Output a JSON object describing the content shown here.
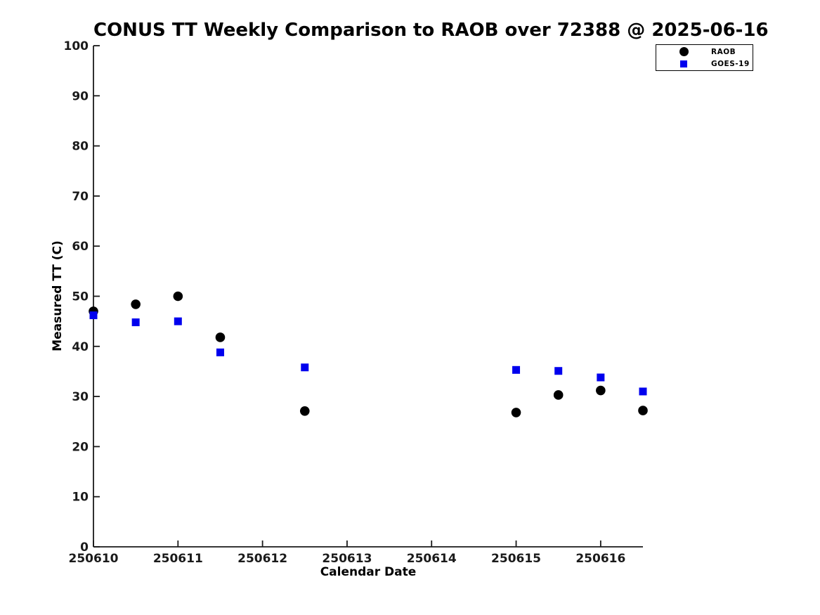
{
  "title": "CONUS TT Weekly Comparison to RAOB over 72388 @ 2025-06-16",
  "chart_data": {
    "type": "scatter",
    "title": "CONUS TT Weekly Comparison to RAOB over 72388 @ 2025-06-16",
    "xlabel": "Calendar Date",
    "ylabel": "Measured TT (C)",
    "xlim": [
      250610,
      250616.5
    ],
    "ylim": [
      0,
      100
    ],
    "x_ticks": [
      250610,
      250611,
      250612,
      250613,
      250614,
      250615,
      250616
    ],
    "y_ticks": [
      0,
      10,
      20,
      30,
      40,
      50,
      60,
      70,
      80,
      90,
      100
    ],
    "grid": false,
    "legend_position": "top-right-outside",
    "x": [
      250610.0,
      250610.5,
      250611.0,
      250611.5,
      250612.5,
      250615.0,
      250615.5,
      250616.0,
      250616.5
    ],
    "series": [
      {
        "name": "RAOB",
        "marker": "circle",
        "color": "#000000",
        "values": [
          47.0,
          48.4,
          50.0,
          41.8,
          27.1,
          26.8,
          30.3,
          31.2,
          27.2
        ]
      },
      {
        "name": "GOES-19",
        "marker": "square",
        "color": "#0000ee",
        "values": [
          46.2,
          44.8,
          45.0,
          38.8,
          35.8,
          35.3,
          35.1,
          33.8,
          31.0
        ]
      }
    ]
  },
  "legend": {
    "entries": [
      {
        "label": "RAOB"
      },
      {
        "label": "GOES-19"
      }
    ]
  },
  "colors": {
    "raob": "#000000",
    "goes19": "#0000ee",
    "axis": "#1a1a1a",
    "background": "#ffffff"
  }
}
